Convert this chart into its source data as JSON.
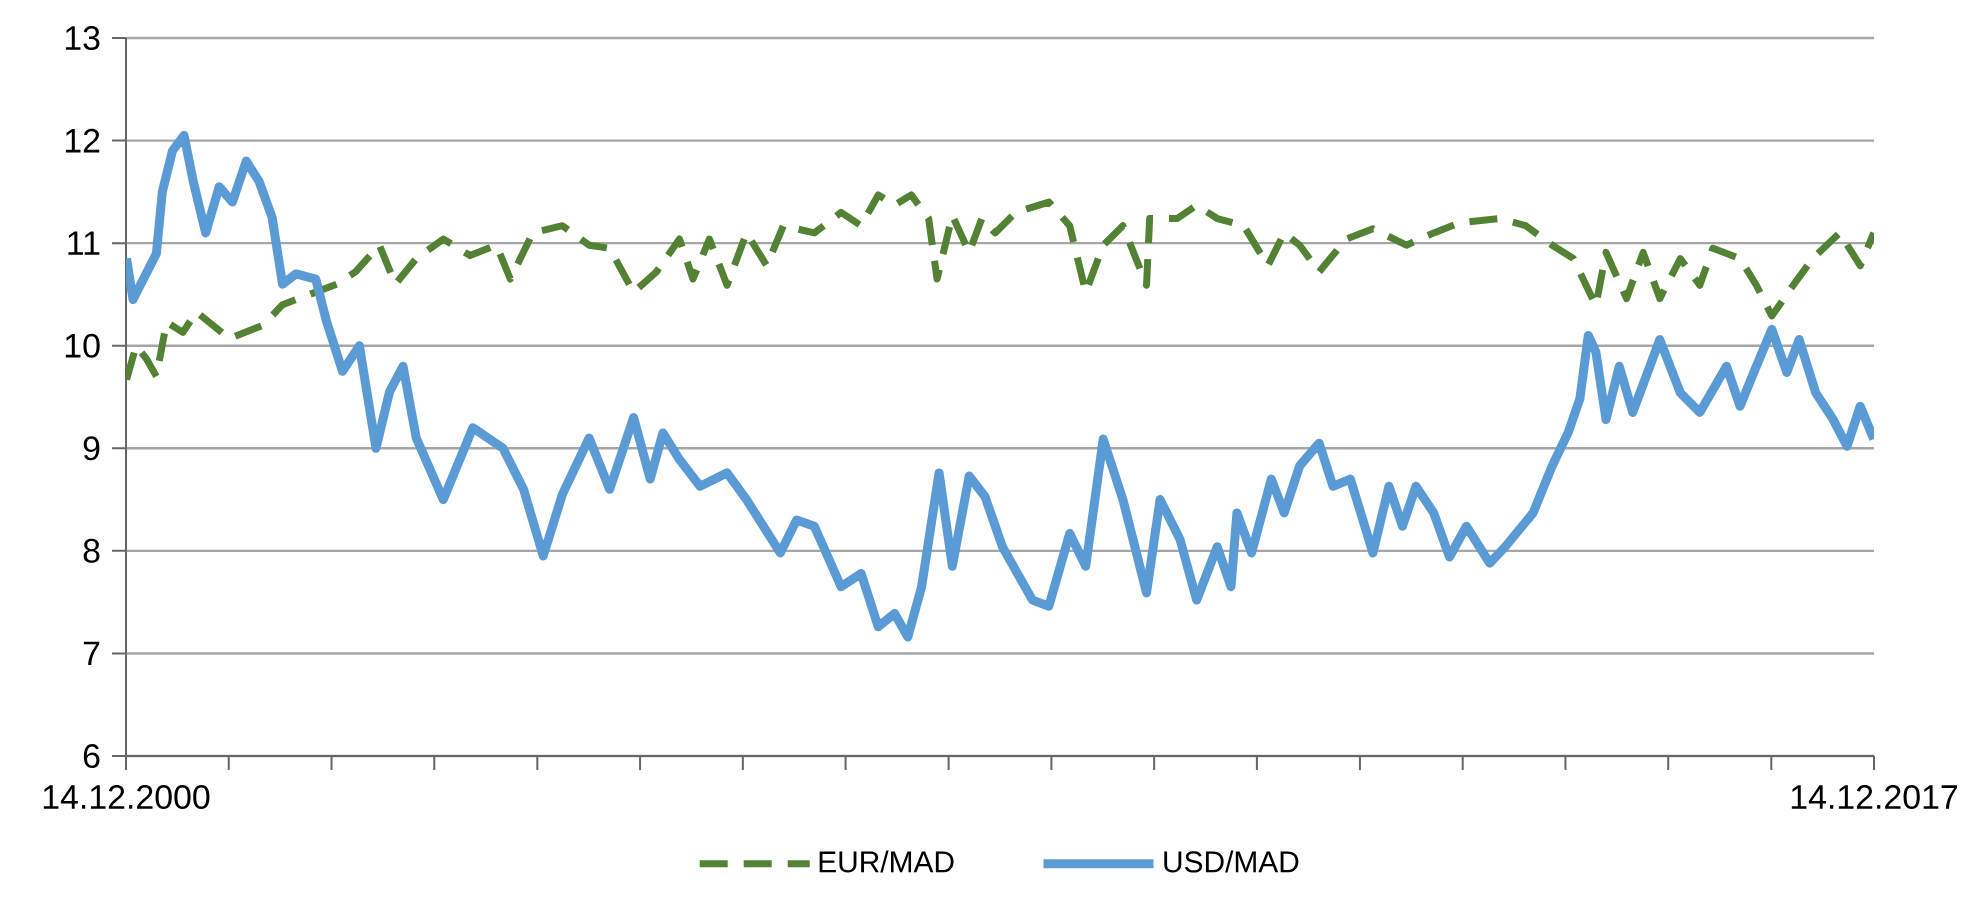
{
  "chart_data": {
    "type": "line",
    "xlim": [
      "2000-12-14",
      "2017-12-14"
    ],
    "xticks": [
      {
        "value": "2000-12-14",
        "label": "14.12.2000"
      },
      {
        "value": "2001-12-14",
        "label": null
      },
      {
        "value": "2002-12-14",
        "label": null
      },
      {
        "value": "2003-12-14",
        "label": null
      },
      {
        "value": "2004-12-14",
        "label": null
      },
      {
        "value": "2005-12-14",
        "label": null
      },
      {
        "value": "2006-12-14",
        "label": null
      },
      {
        "value": "2007-12-14",
        "label": null
      },
      {
        "value": "2008-12-14",
        "label": null
      },
      {
        "value": "2009-12-14",
        "label": null
      },
      {
        "value": "2010-12-14",
        "label": null
      },
      {
        "value": "2011-12-14",
        "label": null
      },
      {
        "value": "2012-12-14",
        "label": null
      },
      {
        "value": "2013-12-14",
        "label": null
      },
      {
        "value": "2014-12-14",
        "label": null
      },
      {
        "value": "2015-12-14",
        "label": null
      },
      {
        "value": "2016-12-14",
        "label": null
      },
      {
        "value": "2017-12-14",
        "label": "14.12.2017"
      }
    ],
    "ylim": [
      6,
      13
    ],
    "yticks": [
      6,
      7,
      8,
      9,
      10,
      11,
      12,
      13
    ],
    "grid": "y",
    "legend": "bottom",
    "series": [
      {
        "name": "EUR/MAD",
        "color": "#548235",
        "line_style": "dashed",
        "x": [
          "2000-12-16",
          "2001-01-19",
          "2001-02-25",
          "2001-04-01",
          "2001-05-07",
          "2001-07-04",
          "2001-08-21",
          "2001-12-16",
          "2002-04-15",
          "2002-06-23",
          "2002-09-27",
          "2003-01-01",
          "2003-03-09",
          "2003-06-02",
          "2003-07-29",
          "2003-10-11",
          "2004-01-15",
          "2004-04-19",
          "2004-07-22",
          "2004-09-09",
          "2004-11-28",
          "2005-03-13",
          "2005-06-16",
          "2005-08-28",
          "2005-11-21",
          "2006-02-10",
          "2006-05-03",
          "2006-06-20",
          "2006-08-17",
          "2006-10-19",
          "2006-12-27",
          "2007-03-09",
          "2007-05-07",
          "2007-08-25",
          "2007-11-28",
          "2008-02-07",
          "2008-04-08",
          "2008-06-05",
          "2008-08-03",
          "2008-10-04",
          "2008-11-03",
          "2008-12-27",
          "2009-02-25",
          "2009-04-11",
          "2009-05-28",
          "2009-08-10",
          "2009-12-05",
          "2010-02-17",
          "2010-04-15",
          "2010-06-16",
          "2010-08-25",
          "2010-11-17",
          "2010-11-28",
          "2011-03-05",
          "2011-05-14",
          "2011-07-26",
          "2011-10-28",
          "2012-01-22",
          "2012-03-20",
          "2012-05-14",
          "2012-07-22",
          "2012-10-26",
          "2013-01-29",
          "2013-05-28",
          "2013-09-02",
          "2013-12-05",
          "2014-04-22",
          "2014-07-26",
          "2014-10-28",
          "2015-01-11",
          "2015-04-01",
          "2015-05-07",
          "2015-07-19",
          "2015-09-16",
          "2015-11-14",
          "2016-01-26",
          "2016-04-04",
          "2016-05-21",
          "2016-08-25",
          "2016-10-22",
          "2016-12-16",
          "2017-03-02",
          "2017-05-10",
          "2017-08-14",
          "2017-10-26",
          "2017-12-13"
        ],
        "values": [
          9.67,
          10.0,
          9.87,
          9.7,
          10.23,
          10.13,
          10.33,
          10.07,
          10.2,
          10.4,
          10.5,
          10.6,
          10.72,
          10.98,
          10.6,
          10.85,
          11.04,
          10.88,
          10.98,
          10.65,
          11.1,
          11.17,
          10.98,
          10.95,
          10.52,
          10.72,
          11.04,
          10.65,
          11.04,
          10.59,
          11.1,
          10.78,
          11.17,
          11.1,
          11.3,
          11.17,
          11.47,
          11.37,
          11.47,
          11.24,
          10.65,
          11.27,
          10.91,
          11.24,
          11.1,
          11.3,
          11.4,
          11.17,
          10.52,
          10.98,
          11.17,
          10.59,
          11.24,
          11.24,
          11.37,
          11.24,
          11.17,
          10.78,
          11.1,
          10.98,
          10.72,
          11.04,
          11.14,
          10.98,
          11.1,
          11.2,
          11.24,
          11.17,
          10.98,
          10.85,
          10.39,
          10.91,
          10.46,
          10.91,
          10.46,
          10.85,
          10.59,
          10.95,
          10.85,
          10.59,
          10.29,
          10.59,
          10.85,
          11.1,
          10.78,
          11.1
        ]
      },
      {
        "name": "USD/MAD",
        "color": "#5b9bd5",
        "line_style": "solid",
        "x": [
          "2000-12-16",
          "2001-01-08",
          "2001-02-14",
          "2001-04-01",
          "2001-04-22",
          "2001-05-28",
          "2001-07-08",
          "2001-08-10",
          "2001-09-23",
          "2001-11-10",
          "2001-12-27",
          "2002-02-14",
          "2002-04-01",
          "2002-05-17",
          "2002-06-23",
          "2002-08-10",
          "2002-10-19",
          "2002-11-25",
          "2003-01-22",
          "2003-03-23",
          "2003-05-21",
          "2003-07-08",
          "2003-08-25",
          "2003-10-11",
          "2004-01-15",
          "2004-04-29",
          "2004-08-14",
          "2004-10-26",
          "2005-01-04",
          "2005-03-13",
          "2005-06-16",
          "2005-08-28",
          "2005-11-21",
          "2006-01-19",
          "2006-03-05",
          "2006-05-03",
          "2006-07-15",
          "2006-10-19",
          "2006-12-27",
          "2007-04-26",
          "2007-06-23",
          "2007-08-25",
          "2007-11-28",
          "2008-02-07",
          "2008-04-08",
          "2008-06-05",
          "2008-07-22",
          "2008-09-09",
          "2008-11-10",
          "2008-12-27",
          "2009-02-25",
          "2009-04-22",
          "2009-06-23",
          "2009-10-08",
          "2009-12-05",
          "2010-02-17",
          "2010-04-15",
          "2010-06-16",
          "2010-08-25",
          "2010-11-17",
          "2011-01-04",
          "2011-03-16",
          "2011-05-14",
          "2011-07-26",
          "2011-09-13",
          "2011-10-04",
          "2011-11-25",
          "2012-02-03",
          "2012-03-20",
          "2012-05-14",
          "2012-07-22",
          "2012-09-09",
          "2012-11-10",
          "2013-01-29",
          "2013-03-27",
          "2013-05-14",
          "2013-07-01",
          "2013-09-02",
          "2013-10-28",
          "2013-12-27",
          "2014-03-20",
          "2014-05-14",
          "2014-08-21",
          "2014-10-28",
          "2014-12-23",
          "2015-02-03",
          "2015-03-05",
          "2015-04-01",
          "2015-05-07",
          "2015-06-23",
          "2015-08-10",
          "2015-11-14",
          "2016-01-26",
          "2016-04-04",
          "2016-07-08",
          "2016-08-25",
          "2016-10-22",
          "2016-12-16",
          "2017-02-07",
          "2017-03-23",
          "2017-05-21",
          "2017-07-22",
          "2017-09-09",
          "2017-10-26",
          "2017-12-13"
        ],
        "values": [
          10.85,
          10.45,
          10.65,
          10.9,
          11.5,
          11.9,
          12.05,
          11.6,
          11.1,
          11.55,
          11.4,
          11.8,
          11.6,
          11.25,
          10.6,
          10.7,
          10.65,
          10.25,
          9.75,
          10.0,
          9.0,
          9.55,
          9.8,
          9.1,
          8.5,
          9.2,
          9.0,
          8.6,
          7.95,
          8.55,
          9.1,
          8.6,
          9.3,
          8.7,
          9.15,
          8.89,
          8.63,
          8.76,
          8.5,
          7.98,
          8.3,
          8.24,
          7.65,
          7.78,
          7.26,
          7.39,
          7.16,
          7.65,
          8.76,
          7.85,
          8.73,
          8.53,
          8.04,
          7.52,
          7.46,
          8.17,
          7.85,
          9.09,
          8.5,
          7.59,
          8.5,
          8.11,
          7.52,
          8.04,
          7.65,
          8.37,
          7.98,
          8.7,
          8.37,
          8.83,
          9.05,
          8.63,
          8.7,
          7.98,
          8.63,
          8.24,
          8.63,
          8.37,
          7.94,
          8.24,
          7.88,
          8.04,
          8.37,
          8.83,
          9.15,
          9.48,
          10.1,
          9.94,
          9.28,
          9.8,
          9.35,
          10.06,
          9.54,
          9.35,
          9.8,
          9.41,
          9.8,
          10.16,
          9.74,
          10.06,
          9.54,
          9.28,
          9.02,
          9.41,
          9.09
        ]
      }
    ]
  }
}
